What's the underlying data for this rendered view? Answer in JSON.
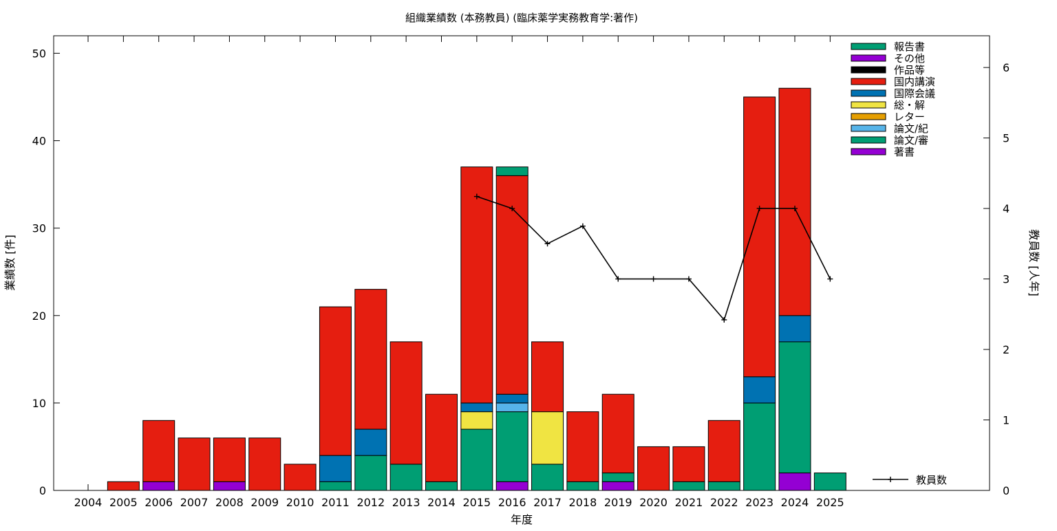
{
  "chart_data": {
    "type": "bar",
    "title": "組織業績数 (本務教員) (臨床薬学実務教育学:著作)",
    "xlabel": "年度",
    "ylabel": "業績数 [件]",
    "y2label": "教員数 [人年]",
    "categories": [
      "2004",
      "2005",
      "2006",
      "2007",
      "2008",
      "2009",
      "2010",
      "2011",
      "2012",
      "2013",
      "2014",
      "2015",
      "2016",
      "2017",
      "2018",
      "2019",
      "2020",
      "2021",
      "2022",
      "2023",
      "2024",
      "2025"
    ],
    "ylim": [
      0,
      52
    ],
    "y2lim": [
      0,
      6.45
    ],
    "yticks": [
      0,
      10,
      20,
      30,
      40,
      50
    ],
    "y2ticks": [
      0,
      1,
      2,
      3,
      4,
      5,
      6
    ],
    "stacked": true,
    "legend_position": "top-right",
    "series": [
      {
        "name": "著書",
        "color": "#9400d3",
        "values": [
          0,
          0,
          1,
          0,
          1,
          0,
          0,
          0,
          0,
          0,
          0,
          0,
          1,
          0,
          0,
          1,
          0,
          0,
          0,
          0,
          2,
          0
        ]
      },
      {
        "name": "論文/審",
        "color": "#009e73",
        "values": [
          0,
          0,
          0,
          0,
          0,
          0,
          0,
          1,
          4,
          3,
          1,
          7,
          8,
          3,
          1,
          1,
          0,
          1,
          1,
          10,
          15,
          2
        ]
      },
      {
        "name": "論文/紀",
        "color": "#56b4e9",
        "values": [
          0,
          0,
          0,
          0,
          0,
          0,
          0,
          0,
          0,
          0,
          0,
          0,
          1,
          0,
          0,
          0,
          0,
          0,
          0,
          0,
          0,
          0
        ]
      },
      {
        "name": "レター",
        "color": "#e69f00",
        "values": [
          0,
          0,
          0,
          0,
          0,
          0,
          0,
          0,
          0,
          0,
          0,
          0,
          0,
          0,
          0,
          0,
          0,
          0,
          0,
          0,
          0,
          0
        ]
      },
      {
        "name": "総・解",
        "color": "#f0e442",
        "values": [
          0,
          0,
          0,
          0,
          0,
          0,
          0,
          0,
          0,
          0,
          0,
          2,
          0,
          6,
          0,
          0,
          0,
          0,
          0,
          0,
          0,
          0
        ]
      },
      {
        "name": "国際会議",
        "color": "#0072b2",
        "values": [
          0,
          0,
          0,
          0,
          0,
          0,
          0,
          3,
          3,
          0,
          0,
          1,
          1,
          0,
          0,
          0,
          0,
          0,
          0,
          3,
          3,
          0
        ]
      },
      {
        "name": "国内講演",
        "color": "#e51e10",
        "values": [
          0,
          1,
          7,
          6,
          5,
          6,
          3,
          17,
          16,
          14,
          10,
          27,
          25,
          8,
          8,
          9,
          5,
          4,
          7,
          32,
          26,
          0
        ]
      },
      {
        "name": "作品等",
        "color": "#000000",
        "values": [
          0,
          0,
          0,
          0,
          0,
          0,
          0,
          0,
          0,
          0,
          0,
          0,
          0,
          0,
          0,
          0,
          0,
          0,
          0,
          0,
          0,
          0
        ]
      },
      {
        "name": "その他",
        "color": "#9400d3",
        "values": [
          0,
          0,
          0,
          0,
          0,
          0,
          0,
          0,
          0,
          0,
          0,
          0,
          0,
          0,
          0,
          0,
          0,
          0,
          0,
          0,
          0,
          0
        ]
      },
      {
        "name": "報告書",
        "color": "#009e73",
        "values": [
          0,
          0,
          0,
          0,
          0,
          0,
          0,
          0,
          0,
          0,
          0,
          0,
          1,
          0,
          0,
          0,
          0,
          0,
          0,
          0,
          0,
          0
        ]
      }
    ],
    "line_series": {
      "name": "教員数",
      "axis": "y2",
      "color": "#000000",
      "points": [
        {
          "x": "2015",
          "y": 4.17
        },
        {
          "x": "2016",
          "y": 4.0
        },
        {
          "x": "2017",
          "y": 3.5
        },
        {
          "x": "2018",
          "y": 3.75
        },
        {
          "x": "2019",
          "y": 3.0
        },
        {
          "x": "2020",
          "y": 3.0
        },
        {
          "x": "2021",
          "y": 3.0
        },
        {
          "x": "2022",
          "y": 2.42
        },
        {
          "x": "2023",
          "y": 4.0
        },
        {
          "x": "2024",
          "y": 4.0
        },
        {
          "x": "2025",
          "y": 3.0
        }
      ]
    }
  }
}
